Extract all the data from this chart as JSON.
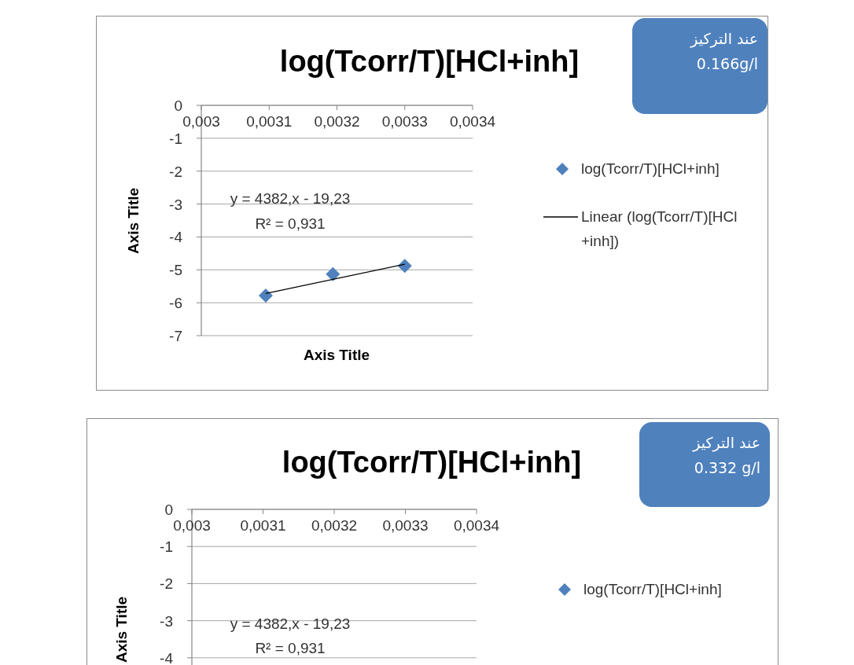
{
  "chart_data": [
    {
      "type": "scatter",
      "title": "log(Tcorr/T)[HCl+inh]",
      "xlabel": "Axis Title",
      "ylabel": "Axis Title",
      "xlim": [
        0.003,
        0.0034
      ],
      "xticks": [
        {
          "value": 0.003,
          "label": "0,003"
        },
        {
          "value": 0.0031,
          "label": "0,0031"
        },
        {
          "value": 0.0032,
          "label": "0,0032"
        },
        {
          "value": 0.0033,
          "label": "0,0033"
        },
        {
          "value": 0.0034,
          "label": "0,0034"
        }
      ],
      "ylim": [
        -7,
        0
      ],
      "yticks": [
        0,
        -1,
        -2,
        -3,
        -4,
        -5,
        -6,
        -7
      ],
      "grid": "y",
      "legend": "right",
      "series": [
        {
          "name": "log(Tcorr/T)[HCl+inh]",
          "color": "#4f81bd",
          "marker": "diamond",
          "x": [
            0.003095,
            0.003194,
            0.0033
          ],
          "values": [
            -5.78,
            -5.13,
            -4.88
          ]
        },
        {
          "name": "Linear (log(Tcorr/T)[HCl+inh])",
          "type": "line",
          "color": "#000000",
          "x": [
            0.003095,
            0.0033
          ],
          "values": [
            -5.72,
            -4.83
          ]
        }
      ],
      "annotations": [
        "y = 4382,x - 19,23",
        "R² = 0,931",
        "عند التركيز\n0.166g/l"
      ]
    },
    {
      "type": "scatter",
      "title": "log(Tcorr/T)[HCl+inh]",
      "ylabel": "Axis Title",
      "categories": [
        "0,003",
        "0,0031",
        "0,0032",
        "0,0033",
        "0,0034"
      ],
      "ylim": [
        -4.3,
        0
      ],
      "yticks": [
        0,
        -1,
        -2,
        -3,
        -4
      ],
      "grid": "y",
      "legend": "right",
      "series": [
        {
          "name": "log(Tcorr/T)[HCl+inh]",
          "color": "#4f81bd",
          "marker": "diamond",
          "values": [
            null,
            null,
            null,
            null,
            null
          ]
        }
      ],
      "annotations": [
        "y = 4382,x - 19,23",
        "R² = 0,931",
        "عند التركيز\n0.332 g/l"
      ]
    }
  ]
}
